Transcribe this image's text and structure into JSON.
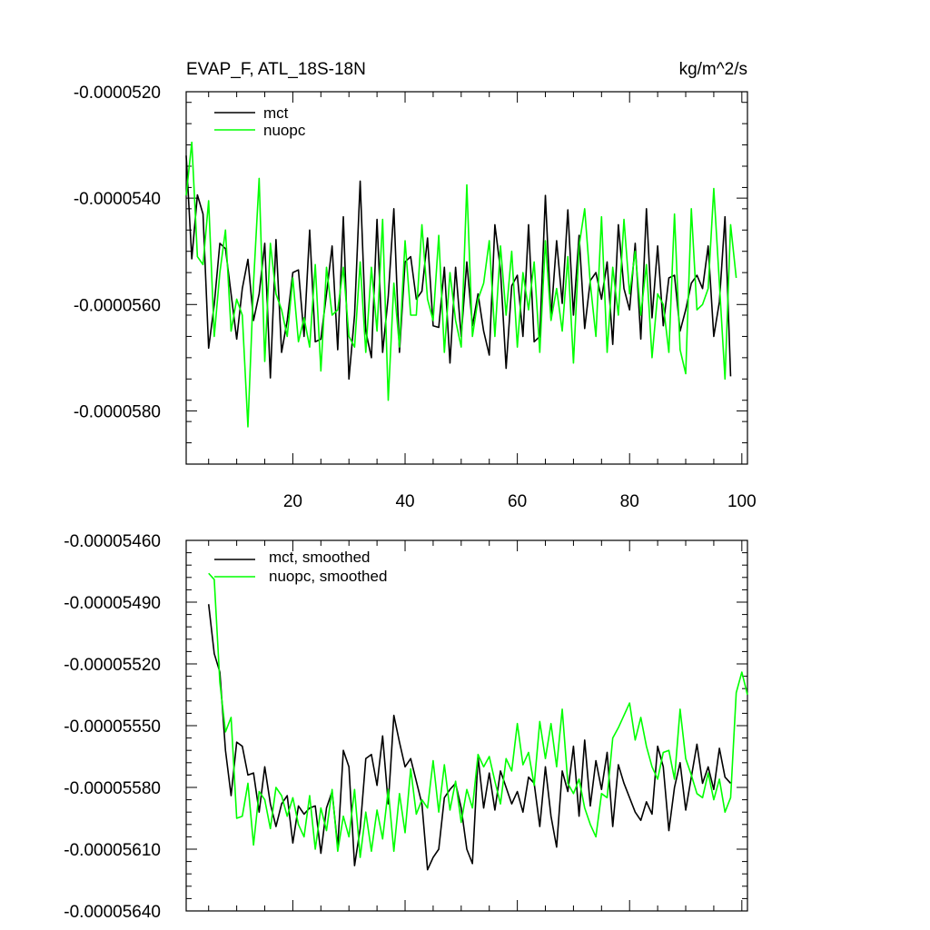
{
  "chart_data": [
    {
      "type": "line",
      "title": "EVAP_F, ATL_18S-18N",
      "units": "kg/m^2/s",
      "xlabel": "",
      "ylabel": "",
      "xlim": [
        1,
        101
      ],
      "ylim": [
        -5.9e-05,
        -5.2e-05
      ],
      "x_ticks": [
        "20",
        "40",
        "60",
        "80",
        "100"
      ],
      "x_tick_values": [
        20,
        40,
        60,
        80,
        100
      ],
      "y_ticks": [
        "-0.0000520",
        "-0.0000540",
        "-0.0000560",
        "-0.0000580"
      ],
      "y_tick_values": [
        -5.2e-05,
        -5.4e-05,
        -5.6e-05,
        -5.8e-05
      ],
      "legend_position": "top-left",
      "series": [
        {
          "name": "mct",
          "color": "#000000",
          "x_start": 1,
          "values": [
            -5.32e-05,
            -5.514e-05,
            -5.394e-05,
            -5.43e-05,
            -5.682e-05,
            -5.6e-05,
            -5.485e-05,
            -5.495e-05,
            -5.58e-05,
            -5.665e-05,
            -5.57e-05,
            -5.515e-05,
            -5.63e-05,
            -5.58e-05,
            -5.485e-05,
            -5.738e-05,
            -5.478e-05,
            -5.69e-05,
            -5.63e-05,
            -5.54e-05,
            -5.535e-05,
            -5.66e-05,
            -5.46e-05,
            -5.67e-05,
            -5.665e-05,
            -5.58e-05,
            -5.49e-05,
            -5.685e-05,
            -5.435e-05,
            -5.74e-05,
            -5.62e-05,
            -5.368e-05,
            -5.65e-05,
            -5.7e-05,
            -5.44e-05,
            -5.69e-05,
            -5.585e-05,
            -5.42e-05,
            -5.69e-05,
            -5.52e-05,
            -5.51e-05,
            -5.59e-05,
            -5.575e-05,
            -5.475e-05,
            -5.64e-05,
            -5.643e-05,
            -5.53e-05,
            -5.71e-05,
            -5.53e-05,
            -5.66e-05,
            -5.52e-05,
            -5.64e-05,
            -5.58e-05,
            -5.65e-05,
            -5.695e-05,
            -5.45e-05,
            -5.535e-05,
            -5.72e-05,
            -5.565e-05,
            -5.545e-05,
            -5.66e-05,
            -5.45e-05,
            -5.67e-05,
            -5.66e-05,
            -5.395e-05,
            -5.625e-05,
            -5.48e-05,
            -5.598e-05,
            -5.422e-05,
            -5.62e-05,
            -5.47e-05,
            -5.645e-05,
            -5.555e-05,
            -5.54e-05,
            -5.59e-05,
            -5.52e-05,
            -5.675e-05,
            -5.45e-05,
            -5.57e-05,
            -5.61e-05,
            -5.485e-05,
            -5.665e-05,
            -5.42e-05,
            -5.625e-05,
            -5.49e-05,
            -5.64e-05,
            -5.55e-05,
            -5.545e-05,
            -5.65e-05,
            -5.61e-05,
            -5.56e-05,
            -5.545e-05,
            -5.57e-05,
            -5.49e-05,
            -5.66e-05,
            -5.595e-05,
            -5.435e-05,
            -5.735e-05
          ]
        },
        {
          "name": "nuopc",
          "color": "#00ff00",
          "x_start": 1,
          "values": [
            -5.395e-05,
            -5.295e-05,
            -5.51e-05,
            -5.525e-05,
            -5.405e-05,
            -5.66e-05,
            -5.54e-05,
            -5.46e-05,
            -5.65e-05,
            -5.59e-05,
            -5.62e-05,
            -5.83e-05,
            -5.56e-05,
            -5.363e-05,
            -5.707e-05,
            -5.485e-05,
            -5.58e-05,
            -5.61e-05,
            -5.66e-05,
            -5.55e-05,
            -5.67e-05,
            -5.625e-05,
            -5.68e-05,
            -5.525e-05,
            -5.725e-05,
            -5.53e-05,
            -5.62e-05,
            -5.61e-05,
            -5.53e-05,
            -5.66e-05,
            -5.68e-05,
            -5.52e-05,
            -5.69e-05,
            -5.53e-05,
            -5.65e-05,
            -5.44e-05,
            -5.78e-05,
            -5.56e-05,
            -5.68e-05,
            -5.48e-05,
            -5.62e-05,
            -5.62e-05,
            -5.45e-05,
            -5.59e-05,
            -5.63e-05,
            -5.47e-05,
            -5.69e-05,
            -5.54e-05,
            -5.63e-05,
            -5.68e-05,
            -5.375e-05,
            -5.66e-05,
            -5.59e-05,
            -5.56e-05,
            -5.48e-05,
            -5.66e-05,
            -5.49e-05,
            -5.62e-05,
            -5.5e-05,
            -5.68e-05,
            -5.54e-05,
            -5.61e-05,
            -5.52e-05,
            -5.69e-05,
            -5.48e-05,
            -5.63e-05,
            -5.57e-05,
            -5.65e-05,
            -5.51e-05,
            -5.71e-05,
            -5.49e-05,
            -5.42e-05,
            -5.56e-05,
            -5.66e-05,
            -5.435e-05,
            -5.69e-05,
            -5.53e-05,
            -5.62e-05,
            -5.44e-05,
            -5.58e-05,
            -5.5e-05,
            -5.62e-05,
            -5.525e-05,
            -5.7e-05,
            -5.58e-05,
            -5.6e-05,
            -5.69e-05,
            -5.43e-05,
            -5.685e-05,
            -5.73e-05,
            -5.42e-05,
            -5.61e-05,
            -5.6e-05,
            -5.57e-05,
            -5.382e-05,
            -5.56e-05,
            -5.74e-05,
            -5.45e-05,
            -5.55e-05
          ]
        }
      ]
    },
    {
      "type": "line",
      "title": "",
      "xlabel": "",
      "ylabel": "",
      "xlim": [
        1,
        101
      ],
      "ylim": [
        -5.64e-05,
        -5.46e-05
      ],
      "x_tick_values": [
        20,
        40,
        60,
        80,
        100
      ],
      "y_ticks": [
        "-0.00005460",
        "-0.00005490",
        "-0.00005520",
        "-0.00005550",
        "-0.00005580",
        "-0.00005610",
        "-0.00005640"
      ],
      "y_tick_values": [
        -5.46e-05,
        -5.49e-05,
        -5.52e-05,
        -5.55e-05,
        -5.58e-05,
        -5.61e-05,
        -5.64e-05
      ],
      "legend_position": "top-left",
      "series": [
        {
          "name": "mct, smoothed",
          "color": "#000000",
          "x_start": 5,
          "values": [
            -5.491e-05,
            -5.515e-05,
            -5.524e-05,
            -5.562e-05,
            -5.584e-05,
            -5.558e-05,
            -5.56e-05,
            -5.574e-05,
            -5.573e-05,
            -5.592e-05,
            -5.57e-05,
            -5.588e-05,
            -5.599e-05,
            -5.588e-05,
            -5.584e-05,
            -5.607e-05,
            -5.589e-05,
            -5.593e-05,
            -5.59e-05,
            -5.589e-05,
            -5.612e-05,
            -5.59e-05,
            -5.582e-05,
            -5.609e-05,
            -5.562e-05,
            -5.57e-05,
            -5.618e-05,
            -5.6e-05,
            -5.566e-05,
            -5.564e-05,
            -5.579e-05,
            -5.555e-05,
            -5.588e-05,
            -5.545e-05,
            -5.558e-05,
            -5.57e-05,
            -5.566e-05,
            -5.577e-05,
            -5.588e-05,
            -5.62e-05,
            -5.614e-05,
            -5.61e-05,
            -5.585e-05,
            -5.581e-05,
            -5.578e-05,
            -5.59e-05,
            -5.61e-05,
            -5.617e-05,
            -5.565e-05,
            -5.59e-05,
            -5.573e-05,
            -5.591e-05,
            -5.572e-05,
            -5.58e-05,
            -5.588e-05,
            -5.582e-05,
            -5.592e-05,
            -5.575e-05,
            -5.578e-05,
            -5.599e-05,
            -5.57e-05,
            -5.594e-05,
            -5.609e-05,
            -5.572e-05,
            -5.582e-05,
            -5.56e-05,
            -5.594e-05,
            -5.557e-05,
            -5.589e-05,
            -5.567e-05,
            -5.581e-05,
            -5.563e-05,
            -5.599e-05,
            -5.569e-05,
            -5.578e-05,
            -5.585e-05,
            -5.592e-05,
            -5.596e-05,
            -5.587e-05,
            -5.593e-05,
            -5.56e-05,
            -5.57e-05,
            -5.601e-05,
            -5.58e-05,
            -5.568e-05,
            -5.591e-05,
            -5.575e-05,
            -5.559e-05,
            -5.578e-05,
            -5.57e-05,
            -5.581e-05,
            -5.561e-05,
            -5.575e-05,
            -5.578e-05
          ]
        },
        {
          "name": "nuopc, smoothed",
          "color": "#00ff00",
          "x_start": 5,
          "values": [
            -5.476e-05,
            -5.479e-05,
            -5.529e-05,
            -5.553e-05,
            -5.546e-05,
            -5.595e-05,
            -5.594e-05,
            -5.578e-05,
            -5.608e-05,
            -5.582e-05,
            -5.586e-05,
            -5.6e-05,
            -5.58e-05,
            -5.584e-05,
            -5.594e-05,
            -5.585e-05,
            -5.598e-05,
            -5.604e-05,
            -5.584e-05,
            -5.61e-05,
            -5.59e-05,
            -5.601e-05,
            -5.581e-05,
            -5.611e-05,
            -5.594e-05,
            -5.604e-05,
            -5.581e-05,
            -5.614e-05,
            -5.592e-05,
            -5.611e-05,
            -5.591e-05,
            -5.605e-05,
            -5.581e-05,
            -5.611e-05,
            -5.583e-05,
            -5.602e-05,
            -5.571e-05,
            -5.593e-05,
            -5.586e-05,
            -5.59e-05,
            -5.567e-05,
            -5.592e-05,
            -5.569e-05,
            -5.591e-05,
            -5.577e-05,
            -5.597e-05,
            -5.581e-05,
            -5.59e-05,
            -5.564e-05,
            -5.57e-05,
            -5.565e-05,
            -5.577e-05,
            -5.588e-05,
            -5.566e-05,
            -5.572e-05,
            -5.549e-05,
            -5.569e-05,
            -5.563e-05,
            -5.579e-05,
            -5.548e-05,
            -5.566e-05,
            -5.549e-05,
            -5.57e-05,
            -5.542e-05,
            -5.578e-05,
            -5.583e-05,
            -5.576e-05,
            -5.59e-05,
            -5.598e-05,
            -5.604e-05,
            -5.583e-05,
            -5.585e-05,
            -5.556e-05,
            -5.551e-05,
            -5.545e-05,
            -5.539e-05,
            -5.557e-05,
            -5.546e-05,
            -5.56e-05,
            -5.57e-05,
            -5.576e-05,
            -5.563e-05,
            -5.562e-05,
            -5.576e-05,
            -5.542e-05,
            -5.566e-05,
            -5.574e-05,
            -5.583e-05,
            -5.585e-05,
            -5.573e-05,
            -5.586e-05,
            -5.576e-05,
            -5.592e-05,
            -5.585e-05,
            -5.534e-05,
            -5.524e-05,
            -5.535e-05
          ]
        }
      ]
    }
  ]
}
